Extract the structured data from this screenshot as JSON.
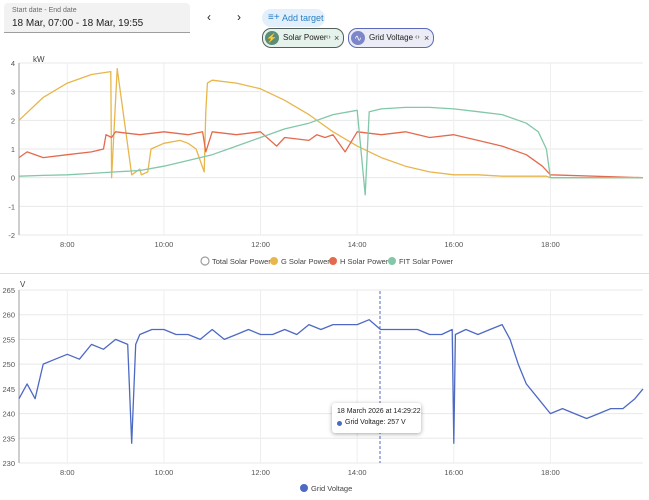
{
  "date_range": {
    "label": "Start date - End date",
    "value": "18 Mar, 07:00 - 18 Mar, 19:55"
  },
  "nav": {
    "prev_icon": "chevron-left-icon",
    "next_icon": "chevron-right-icon",
    "prev_glyph": "‹",
    "next_glyph": "›"
  },
  "add_target": {
    "label": "Add target",
    "icon": "playlist-add-icon",
    "glyph": "≡+"
  },
  "targets": [
    {
      "label": "Solar Power",
      "icon": "lightning-bolt-icon",
      "glyph": "⚡",
      "expand": "‹›",
      "remove": "×"
    },
    {
      "label": "Grid Voltage",
      "icon": "sine-wave-icon",
      "glyph": "∿",
      "expand": "‹›",
      "remove": "×"
    }
  ],
  "colors": {
    "total": "#9e9e9e",
    "g_solar": "#e8b64b",
    "h_solar": "#e46a4d",
    "fit_solar": "#82c7a8",
    "grid_voltage": "#4d69c4"
  },
  "chart_data": [
    {
      "type": "line",
      "ylabel": "kW",
      "ylim": [
        -2,
        4
      ],
      "yticks": [
        "4",
        "3",
        "2",
        "1",
        "0",
        "-1",
        "-2"
      ],
      "xticks": [
        "8:00",
        "10:00",
        "12:00",
        "14:00",
        "16:00",
        "18:00"
      ],
      "x_range": [
        "07:00",
        "19:55"
      ],
      "grid": true,
      "legend_position": "bottom",
      "series": [
        {
          "name": "Total Solar Power",
          "x": [],
          "values": []
        },
        {
          "name": "G Solar Power",
          "x": [
            "07:00",
            "07:30",
            "08:00",
            "08:30",
            "08:54",
            "08:55",
            "09:02",
            "09:20",
            "09:30",
            "09:32",
            "09:40",
            "09:44",
            "10:00",
            "10:20",
            "10:30",
            "10:40",
            "10:50",
            "10:52",
            "10:54",
            "11:00",
            "11:30",
            "12:00",
            "12:30",
            "13:00",
            "13:30",
            "14:00",
            "14:30",
            "15:00",
            "15:30",
            "16:00",
            "16:30",
            "17:00",
            "17:30",
            "17:55",
            "18:00",
            "19:55"
          ],
          "values": [
            2.0,
            2.8,
            3.3,
            3.6,
            3.7,
            0.0,
            3.8,
            0.1,
            0.3,
            0.1,
            0.2,
            1.0,
            1.2,
            1.3,
            1.2,
            1.0,
            0.2,
            2.3,
            3.3,
            3.4,
            3.3,
            3.1,
            2.7,
            2.2,
            1.6,
            1.1,
            0.7,
            0.4,
            0.2,
            0.1,
            0.1,
            0.05,
            0.05,
            0.05,
            0.0,
            0.0
          ]
        },
        {
          "name": "H Solar Power",
          "x": [
            "07:00",
            "07:10",
            "07:30",
            "08:00",
            "08:30",
            "08:45",
            "08:48",
            "08:55",
            "09:00",
            "09:30",
            "10:00",
            "10:30",
            "10:48",
            "10:52",
            "11:00",
            "11:30",
            "12:00",
            "12:20",
            "12:30",
            "13:00",
            "13:10",
            "13:20",
            "13:30",
            "13:45",
            "14:00",
            "14:30",
            "15:00",
            "15:30",
            "16:00",
            "16:30",
            "17:00",
            "17:30",
            "17:50",
            "18:00",
            "19:55"
          ],
          "values": [
            0.7,
            0.9,
            0.7,
            0.8,
            0.9,
            1.0,
            1.5,
            1.4,
            1.6,
            1.5,
            1.6,
            1.5,
            1.6,
            0.9,
            1.6,
            1.5,
            1.6,
            1.1,
            1.4,
            1.3,
            1.5,
            1.4,
            1.5,
            0.9,
            1.6,
            1.5,
            1.6,
            1.4,
            1.5,
            1.3,
            1.1,
            0.8,
            0.4,
            0.1,
            0.0
          ]
        },
        {
          "name": "FIT Solar Power",
          "x": [
            "07:00",
            "07:30",
            "08:00",
            "08:30",
            "09:00",
            "09:30",
            "10:00",
            "10:30",
            "11:00",
            "11:30",
            "12:00",
            "12:30",
            "13:00",
            "13:30",
            "14:00",
            "14:10",
            "14:15",
            "14:30",
            "15:00",
            "15:30",
            "16:00",
            "16:30",
            "17:00",
            "17:30",
            "17:45",
            "17:55",
            "18:00",
            "19:55"
          ],
          "values": [
            0.05,
            0.08,
            0.1,
            0.15,
            0.2,
            0.25,
            0.4,
            0.6,
            0.8,
            1.1,
            1.4,
            1.7,
            1.9,
            2.2,
            2.35,
            -0.6,
            2.3,
            2.4,
            2.45,
            2.45,
            2.4,
            2.3,
            2.2,
            1.9,
            1.6,
            1.0,
            0.0,
            0.0
          ]
        }
      ]
    },
    {
      "type": "line",
      "ylabel": "V",
      "ylim": [
        230,
        265
      ],
      "yticks": [
        "265",
        "260",
        "255",
        "250",
        "245",
        "240",
        "235",
        "230"
      ],
      "xticks": [
        "8:00",
        "10:00",
        "12:00",
        "14:00",
        "16:00",
        "18:00"
      ],
      "x_range": [
        "07:00",
        "19:55"
      ],
      "grid": true,
      "legend_position": "bottom",
      "series": [
        {
          "name": "Grid Voltage",
          "x": [
            "07:00",
            "07:10",
            "07:20",
            "07:30",
            "07:45",
            "08:00",
            "08:15",
            "08:30",
            "08:45",
            "09:00",
            "09:15",
            "09:20",
            "09:25",
            "09:30",
            "09:45",
            "10:00",
            "10:15",
            "10:30",
            "10:45",
            "11:00",
            "11:15",
            "11:30",
            "11:45",
            "12:00",
            "12:15",
            "12:30",
            "12:45",
            "13:00",
            "13:15",
            "13:30",
            "13:45",
            "14:00",
            "14:15",
            "14:29",
            "14:45",
            "15:00",
            "15:15",
            "15:30",
            "15:45",
            "15:58",
            "16:00",
            "16:02",
            "16:15",
            "16:30",
            "16:45",
            "17:00",
            "17:10",
            "17:20",
            "17:30",
            "17:45",
            "18:00",
            "18:15",
            "18:30",
            "18:45",
            "19:00",
            "19:15",
            "19:30",
            "19:45",
            "19:55"
          ],
          "values": [
            243,
            246,
            243,
            250,
            251,
            252,
            251,
            254,
            253,
            255,
            254,
            234,
            254,
            256,
            257,
            257,
            256,
            256,
            255,
            257,
            255,
            256,
            257,
            256,
            256,
            257,
            256,
            258,
            257,
            258,
            258,
            258,
            259,
            257,
            257,
            257,
            257,
            256,
            256,
            257,
            234,
            256,
            257,
            256,
            257,
            258,
            255,
            250,
            246,
            243,
            240,
            241,
            240,
            239,
            240,
            241,
            241,
            243,
            245
          ]
        }
      ]
    }
  ],
  "legend_total": "Total Solar Power",
  "legend_g": "G Solar Power",
  "legend_h": "H Solar Power",
  "legend_fit": "FIT Solar Power",
  "legend_voltage": "Grid Voltage",
  "tooltip": {
    "time": "18 March 2026 at 14:29:22",
    "line": "Grid Voltage: 257 V"
  }
}
